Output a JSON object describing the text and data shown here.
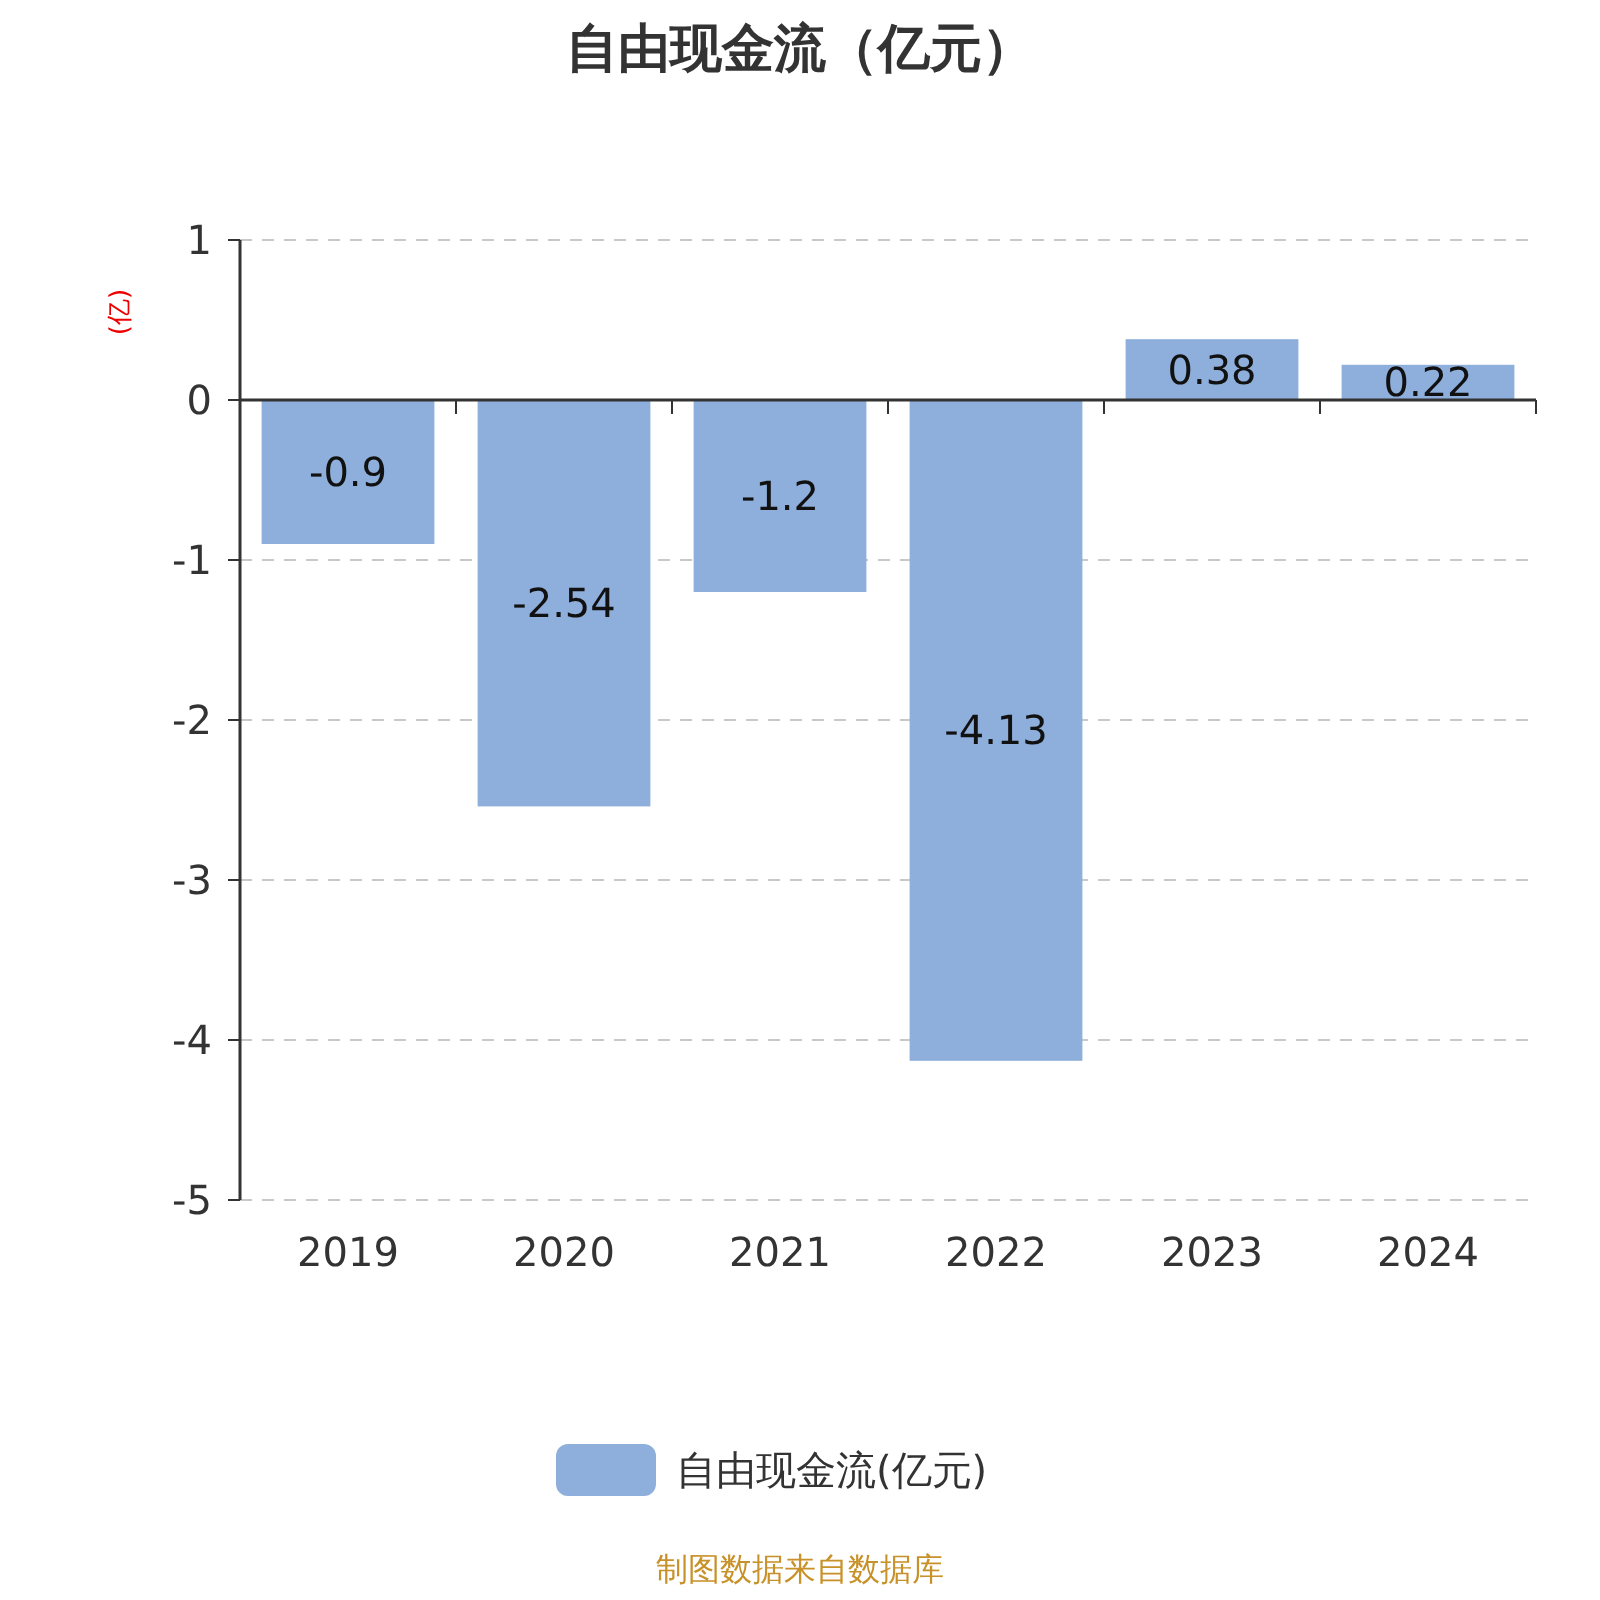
{
  "chart_data": {
    "type": "bar",
    "title": "自由现金流（亿元）",
    "ylabel": "(亿)",
    "categories": [
      "2019",
      "2020",
      "2021",
      "2022",
      "2023",
      "2024"
    ],
    "series": [
      {
        "name": "自由现金流(亿元)",
        "color": "#8eaedb",
        "values": [
          -0.9,
          -2.54,
          -1.2,
          -4.13,
          0.38,
          0.22
        ]
      }
    ],
    "ylim": [
      -5,
      1
    ],
    "yticks": [
      -5,
      -4,
      -3,
      -2,
      -1,
      0,
      1
    ],
    "grid": "y",
    "legend": "bottom",
    "data_labels": true,
    "annotations": [
      "制图数据来自数据库"
    ]
  }
}
